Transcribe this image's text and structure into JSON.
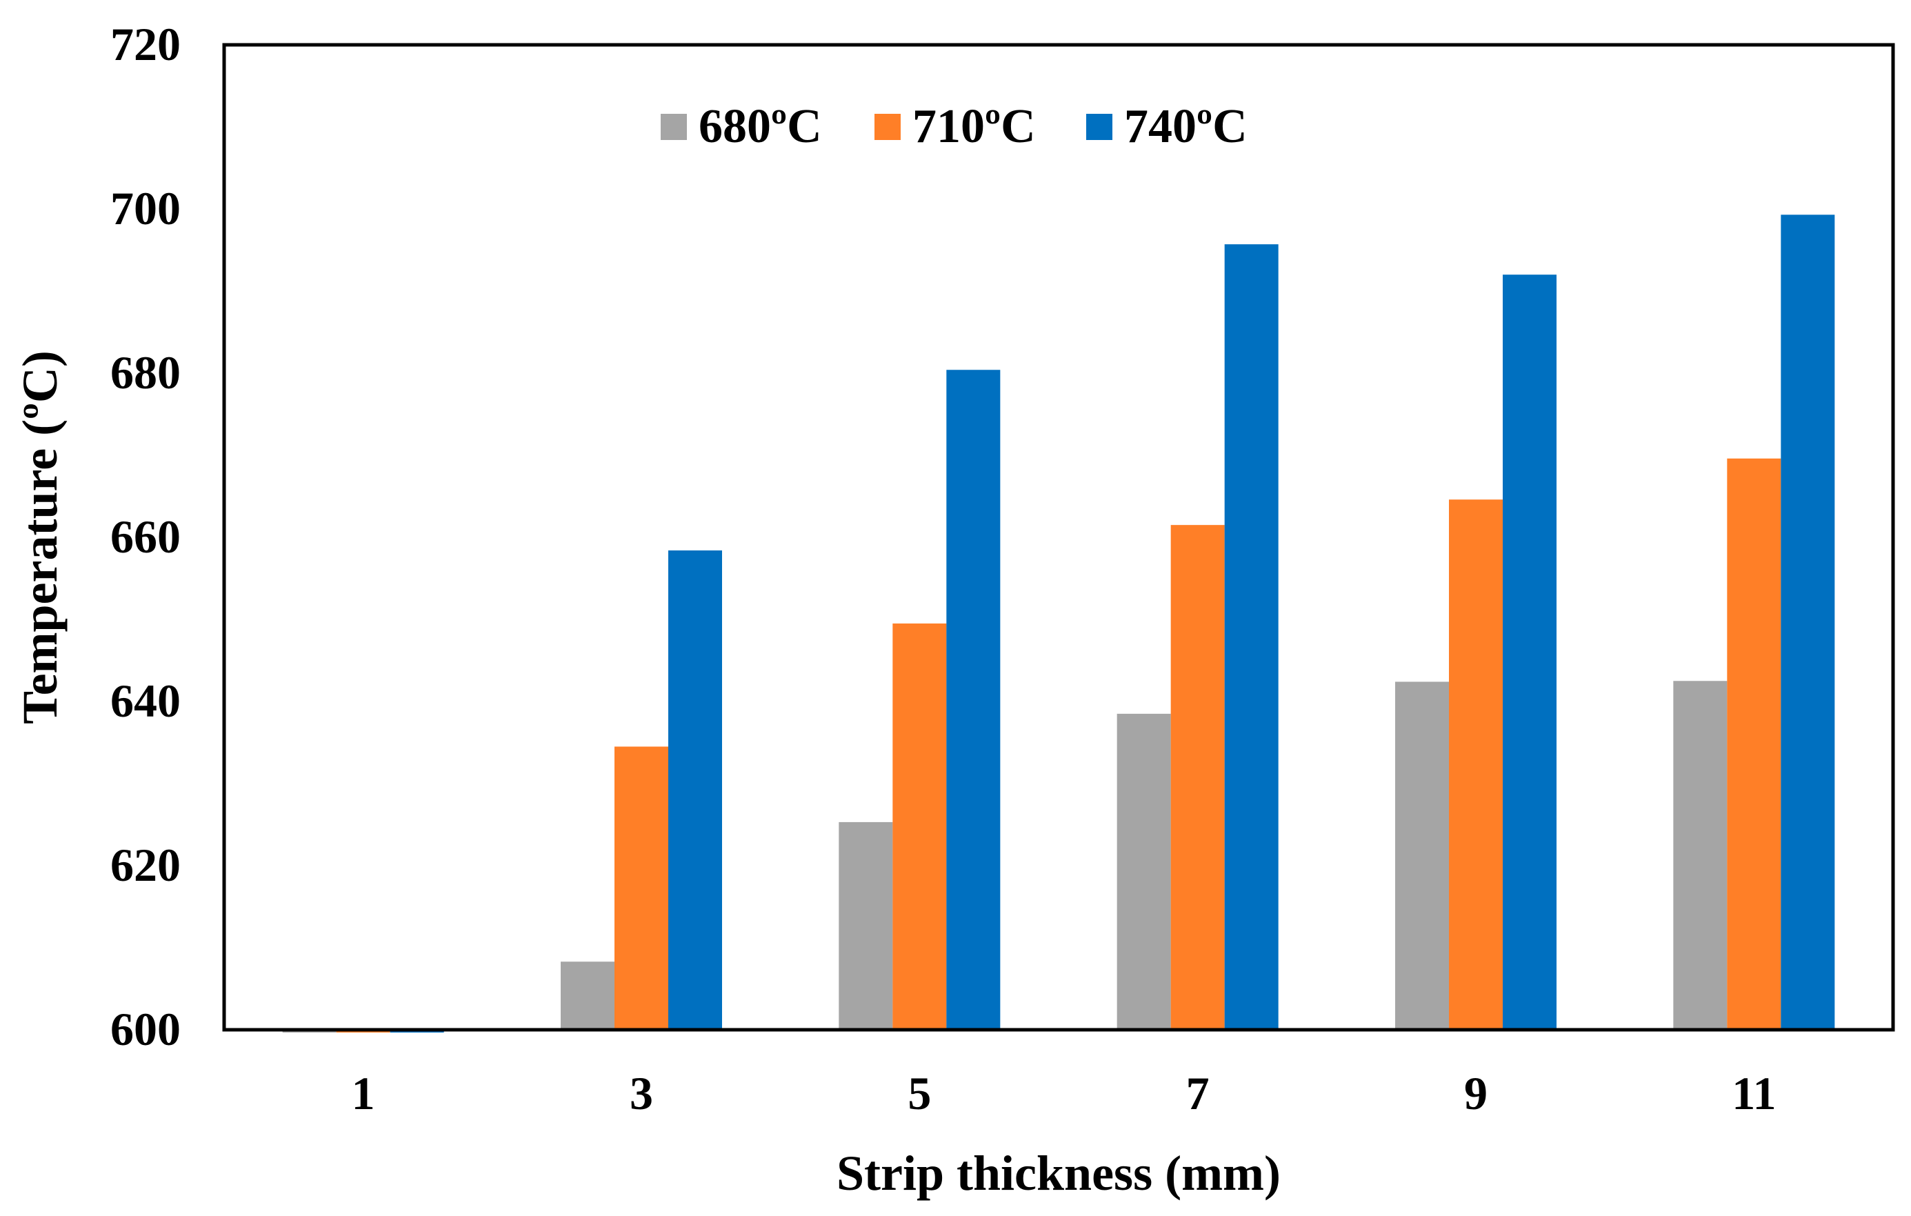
{
  "chart_data": {
    "type": "bar",
    "title": "",
    "xlabel": "Strip thickness (mm)",
    "ylabel": "Temperature (ºC)",
    "categories": [
      "1",
      "3",
      "5",
      "7",
      "9",
      "11"
    ],
    "ylim": [
      600,
      720
    ],
    "yticks": [
      "600",
      "620",
      "640",
      "660",
      "680",
      "700",
      "720"
    ],
    "grid": false,
    "legend_position": "top-center",
    "series": [
      {
        "name": "680ºC",
        "color": "#A5A5A5",
        "values": [
          600,
          608.3,
          625.3,
          638.5,
          642.4,
          642.5
        ]
      },
      {
        "name": "710ºC",
        "color": "#FF7F27",
        "values": [
          600,
          634.5,
          649.5,
          661.5,
          664.6,
          669.6
        ]
      },
      {
        "name": "740ºC",
        "color": "#0070C0",
        "values": [
          600,
          658.4,
          680.4,
          695.7,
          692.0,
          699.3
        ]
      }
    ]
  }
}
